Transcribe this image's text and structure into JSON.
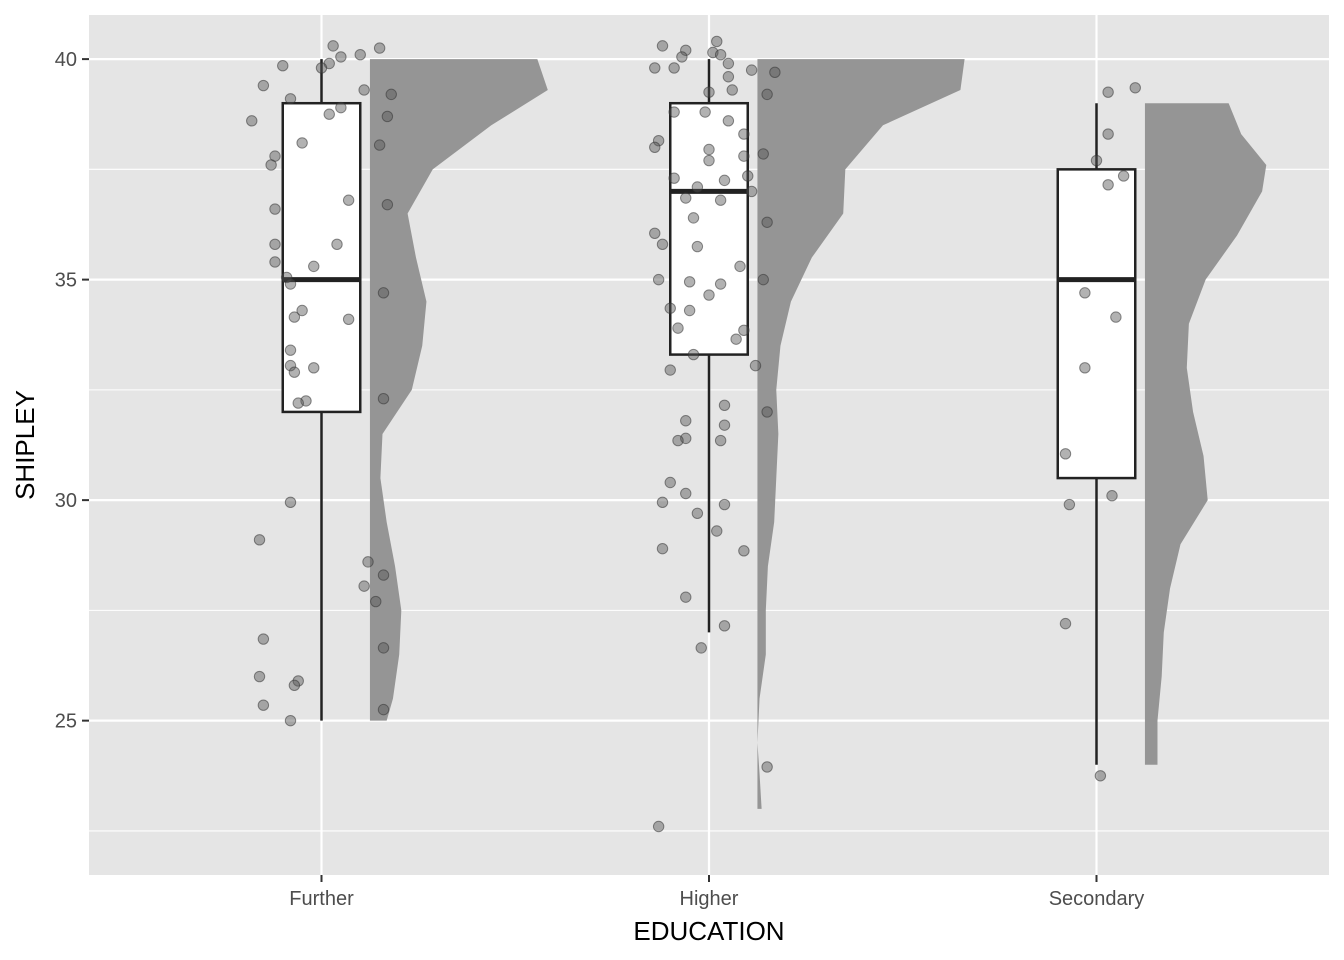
{
  "chart_data": {
    "type": "raincloud",
    "title": "",
    "xlabel": "EDUCATION",
    "ylabel": "SHIPLEY",
    "ylim": [
      21.5,
      41.0
    ],
    "y_ticks": [
      25,
      30,
      35,
      40
    ],
    "grid": true,
    "colors": {
      "panel": "#e5e5e5",
      "grid": "#ffffff",
      "box_fill": "#ffffff",
      "box_line": "#222222",
      "density": "#959595",
      "point": "#555555"
    },
    "categories": [
      "Further",
      "Higher",
      "Secondary"
    ],
    "groups": [
      {
        "name": "Further",
        "box": {
          "lower_whisker": 25,
          "q1": 32,
          "median": 35,
          "q3": 39,
          "upper_whisker": 40
        },
        "density": [
          [
            25,
            0.08
          ],
          [
            25.5,
            0.11
          ],
          [
            26.5,
            0.14
          ],
          [
            27.5,
            0.15
          ],
          [
            28.5,
            0.12
          ],
          [
            29.5,
            0.08
          ],
          [
            30.5,
            0.05
          ],
          [
            31.5,
            0.06
          ],
          [
            32.5,
            0.2
          ],
          [
            33.5,
            0.25
          ],
          [
            34.5,
            0.27
          ],
          [
            35.5,
            0.22
          ],
          [
            36.5,
            0.18
          ],
          [
            37.5,
            0.3
          ],
          [
            38.5,
            0.58
          ],
          [
            39.3,
            0.85
          ],
          [
            40,
            0.8
          ]
        ],
        "points": [
          [
            40.3,
            0.03
          ],
          [
            40.25,
            0.15
          ],
          [
            40.1,
            0.1
          ],
          [
            40.05,
            0.05
          ],
          [
            39.9,
            0.02
          ],
          [
            39.85,
            -0.1
          ],
          [
            39.8,
            0.0
          ],
          [
            39.4,
            -0.15
          ],
          [
            39.3,
            0.11
          ],
          [
            39.2,
            0.18
          ],
          [
            39.1,
            -0.08
          ],
          [
            38.9,
            0.05
          ],
          [
            38.75,
            0.02
          ],
          [
            38.7,
            0.17
          ],
          [
            38.6,
            -0.18
          ],
          [
            38.1,
            -0.05
          ],
          [
            38.05,
            0.15
          ],
          [
            37.8,
            -0.12
          ],
          [
            37.6,
            -0.13
          ],
          [
            36.8,
            0.07
          ],
          [
            36.7,
            0.17
          ],
          [
            36.6,
            -0.12
          ],
          [
            35.8,
            -0.12
          ],
          [
            35.8,
            0.04
          ],
          [
            35.4,
            -0.12
          ],
          [
            35.3,
            -0.02
          ],
          [
            35.05,
            -0.09
          ],
          [
            34.9,
            -0.08
          ],
          [
            34.7,
            0.16
          ],
          [
            34.3,
            -0.05
          ],
          [
            34.15,
            -0.07
          ],
          [
            34.1,
            0.07
          ],
          [
            33.4,
            -0.08
          ],
          [
            33.05,
            -0.08
          ],
          [
            33.0,
            -0.02
          ],
          [
            32.9,
            -0.07
          ],
          [
            32.3,
            0.16
          ],
          [
            32.25,
            -0.04
          ],
          [
            32.2,
            -0.06
          ],
          [
            29.95,
            -0.08
          ],
          [
            29.1,
            -0.16
          ],
          [
            28.6,
            0.12
          ],
          [
            28.3,
            0.16
          ],
          [
            28.05,
            0.11
          ],
          [
            27.7,
            0.14
          ],
          [
            26.85,
            -0.15
          ],
          [
            26.65,
            0.16
          ],
          [
            26.0,
            -0.16
          ],
          [
            25.9,
            -0.06
          ],
          [
            25.8,
            -0.07
          ],
          [
            25.35,
            -0.15
          ],
          [
            25.25,
            0.16
          ],
          [
            25.0,
            -0.08
          ]
        ]
      },
      {
        "name": "Higher",
        "box": {
          "lower_whisker": 27,
          "q1": 33.3,
          "median": 37,
          "q3": 39,
          "upper_whisker": 40
        },
        "density": [
          [
            23,
            0.02
          ],
          [
            23.8,
            0.01
          ],
          [
            24.5,
            0.0
          ],
          [
            25.5,
            0.01
          ],
          [
            26.5,
            0.04
          ],
          [
            27.5,
            0.04
          ],
          [
            28.5,
            0.05
          ],
          [
            29.5,
            0.08
          ],
          [
            30.5,
            0.09
          ],
          [
            31.5,
            0.1
          ],
          [
            32.5,
            0.09
          ],
          [
            33.5,
            0.11
          ],
          [
            34.5,
            0.16
          ],
          [
            35.5,
            0.26
          ],
          [
            36.5,
            0.41
          ],
          [
            37.5,
            0.42
          ],
          [
            38.5,
            0.6
          ],
          [
            39.3,
            0.97
          ],
          [
            40,
            0.99
          ]
        ],
        "points": [
          [
            40.4,
            0.02
          ],
          [
            40.3,
            -0.12
          ],
          [
            40.2,
            -0.06
          ],
          [
            40.15,
            0.01
          ],
          [
            40.1,
            0.03
          ],
          [
            40.05,
            -0.07
          ],
          [
            39.9,
            0.05
          ],
          [
            39.8,
            -0.14
          ],
          [
            39.8,
            -0.09
          ],
          [
            39.75,
            0.11
          ],
          [
            39.7,
            0.17
          ],
          [
            39.6,
            0.05
          ],
          [
            39.3,
            0.06
          ],
          [
            39.25,
            0.0
          ],
          [
            39.2,
            0.15
          ],
          [
            38.8,
            -0.09
          ],
          [
            38.8,
            -0.01
          ],
          [
            38.6,
            0.05
          ],
          [
            38.3,
            0.09
          ],
          [
            38.15,
            -0.13
          ],
          [
            38.0,
            -0.14
          ],
          [
            37.95,
            0.0
          ],
          [
            37.85,
            0.14
          ],
          [
            37.8,
            0.09
          ],
          [
            37.7,
            0.0
          ],
          [
            37.35,
            0.1
          ],
          [
            37.3,
            -0.09
          ],
          [
            37.25,
            0.04
          ],
          [
            37.1,
            -0.03
          ],
          [
            37.0,
            0.11
          ],
          [
            36.85,
            -0.06
          ],
          [
            36.8,
            0.03
          ],
          [
            36.4,
            -0.04
          ],
          [
            36.3,
            0.15
          ],
          [
            36.05,
            -0.14
          ],
          [
            35.8,
            -0.12
          ],
          [
            35.75,
            -0.03
          ],
          [
            35.3,
            0.08
          ],
          [
            35.0,
            -0.13
          ],
          [
            35.0,
            0.14
          ],
          [
            34.95,
            -0.05
          ],
          [
            34.9,
            0.03
          ],
          [
            34.65,
            0.0
          ],
          [
            34.35,
            -0.1
          ],
          [
            34.3,
            -0.05
          ],
          [
            33.9,
            -0.08
          ],
          [
            33.85,
            0.09
          ],
          [
            33.65,
            0.07
          ],
          [
            33.3,
            -0.04
          ],
          [
            33.05,
            0.12
          ],
          [
            32.95,
            -0.1
          ],
          [
            32.15,
            0.04
          ],
          [
            32.0,
            0.15
          ],
          [
            31.8,
            -0.06
          ],
          [
            31.7,
            0.04
          ],
          [
            31.4,
            -0.06
          ],
          [
            31.35,
            -0.08
          ],
          [
            31.35,
            0.03
          ],
          [
            30.4,
            -0.1
          ],
          [
            30.15,
            -0.06
          ],
          [
            29.95,
            -0.12
          ],
          [
            29.9,
            0.04
          ],
          [
            29.7,
            -0.03
          ],
          [
            29.3,
            0.02
          ],
          [
            28.9,
            -0.12
          ],
          [
            28.85,
            0.09
          ],
          [
            27.8,
            -0.06
          ],
          [
            27.15,
            0.04
          ],
          [
            26.65,
            -0.02
          ],
          [
            23.95,
            0.15
          ],
          [
            22.6,
            -0.13
          ]
        ]
      },
      {
        "name": "Secondary",
        "box": {
          "lower_whisker": 24,
          "q1": 30.5,
          "median": 35,
          "q3": 37.5,
          "upper_whisker": 39
        },
        "density": [
          [
            24,
            0.06
          ],
          [
            25,
            0.06
          ],
          [
            26,
            0.08
          ],
          [
            27,
            0.09
          ],
          [
            28,
            0.12
          ],
          [
            29,
            0.17
          ],
          [
            30,
            0.3
          ],
          [
            31,
            0.28
          ],
          [
            32,
            0.23
          ],
          [
            33,
            0.2
          ],
          [
            34,
            0.21
          ],
          [
            35,
            0.29
          ],
          [
            36,
            0.44
          ],
          [
            37,
            0.56
          ],
          [
            37.6,
            0.58
          ],
          [
            38.3,
            0.46
          ],
          [
            39,
            0.4
          ]
        ],
        "points": [
          [
            39.35,
            0.1
          ],
          [
            39.25,
            0.03
          ],
          [
            38.3,
            0.03
          ],
          [
            37.7,
            0.0
          ],
          [
            37.35,
            0.07
          ],
          [
            37.15,
            0.03
          ],
          [
            34.7,
            -0.03
          ],
          [
            34.15,
            0.05
          ],
          [
            33.0,
            -0.03
          ],
          [
            31.05,
            -0.08
          ],
          [
            30.1,
            0.04
          ],
          [
            29.9,
            -0.07
          ],
          [
            27.2,
            -0.08
          ],
          [
            23.75,
            0.01
          ]
        ]
      }
    ]
  }
}
